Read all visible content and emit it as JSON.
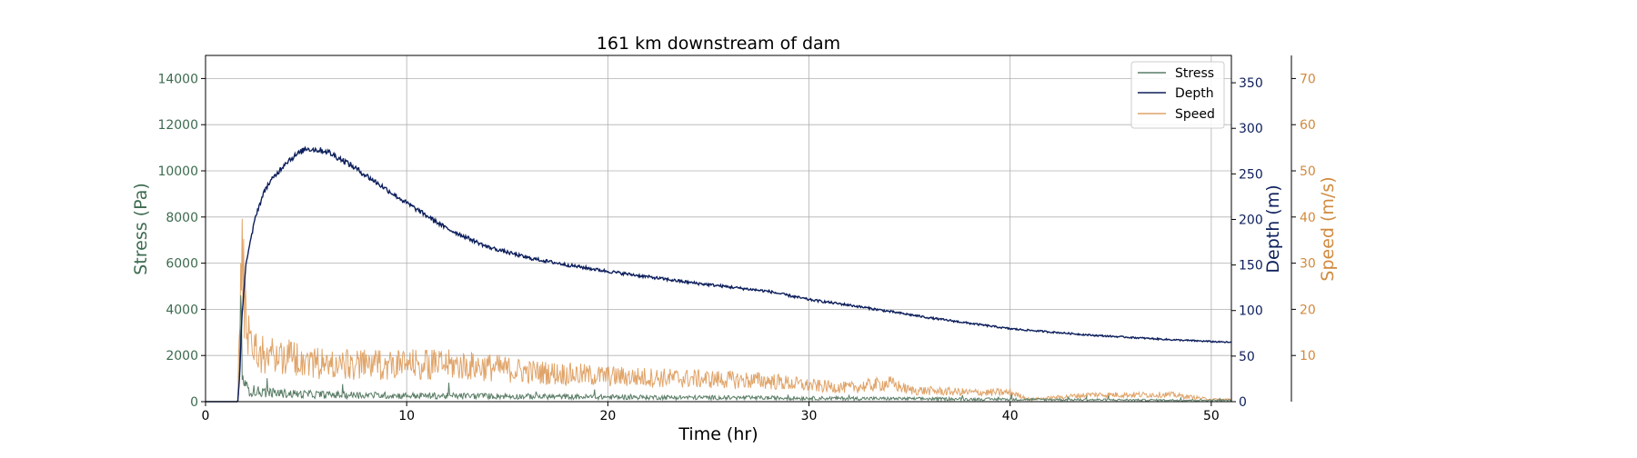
{
  "chart_data": {
    "type": "line",
    "title": "161 km downstream of dam",
    "xlabel": "Time (hr)",
    "xlim": [
      0,
      51
    ],
    "x_ticks": [
      "0",
      "10",
      "20",
      "30",
      "40",
      "50"
    ],
    "x_tick_values": [
      0,
      10,
      20,
      30,
      40,
      50
    ],
    "grid": true,
    "legend_position": "top-right",
    "axes": {
      "stress": {
        "label": "Stress (Pa)",
        "color": "#5a7d66",
        "tick_color": "#3d6b4f",
        "lim": [
          0,
          15000
        ],
        "ticks": [
          "0",
          "2000",
          "4000",
          "6000",
          "8000",
          "10000",
          "12000",
          "14000"
        ],
        "tick_values": [
          0,
          2000,
          4000,
          6000,
          8000,
          10000,
          12000,
          14000
        ]
      },
      "depth": {
        "label": "Depth (m)",
        "color": "#0d1f5c",
        "lim": [
          0,
          380
        ],
        "ticks": [
          "0",
          "50",
          "100",
          "150",
          "200",
          "250",
          "300",
          "350"
        ],
        "tick_values": [
          0,
          50,
          100,
          150,
          200,
          250,
          300,
          350
        ]
      },
      "speed": {
        "label": "Speed (m/s)",
        "color": "#e0a469",
        "tick_color": "#d18a3e",
        "lim": [
          0,
          75
        ],
        "ticks": [
          "10",
          "20",
          "30",
          "40",
          "50",
          "60",
          "70"
        ],
        "tick_values": [
          10,
          20,
          30,
          40,
          50,
          60,
          70
        ]
      }
    },
    "series": [
      {
        "name": "Stress",
        "axis": "stress",
        "color": "#5a7d66",
        "x": [
          0,
          1.6,
          1.7,
          1.75,
          1.8,
          1.9,
          2.0,
          2.2,
          2.5,
          3,
          4,
          5,
          6,
          8,
          10,
          14,
          18,
          22,
          26,
          30,
          34,
          38,
          42,
          46,
          50,
          51
        ],
        "y": [
          0,
          0,
          1500,
          3200,
          2400,
          900,
          600,
          500,
          450,
          400,
          350,
          320,
          300,
          280,
          260,
          240,
          210,
          190,
          170,
          150,
          130,
          110,
          90,
          75,
          60,
          55
        ]
      },
      {
        "name": "Depth",
        "axis": "depth",
        "color": "#0d1f5c",
        "x": [
          0,
          1.6,
          1.7,
          1.8,
          2.0,
          2.5,
          3,
          4,
          5,
          6,
          7,
          8,
          10,
          12,
          14,
          16,
          18,
          20,
          24,
          28,
          30,
          32,
          34,
          36,
          38,
          40,
          44,
          48,
          51
        ],
        "y": [
          0,
          0,
          30,
          90,
          150,
          205,
          235,
          263,
          278,
          275,
          263,
          248,
          218,
          190,
          170,
          158,
          150,
          143,
          131,
          121,
          112,
          106,
          99,
          92,
          86,
          80,
          73,
          68,
          65
        ]
      },
      {
        "name": "Speed",
        "axis": "speed",
        "color": "#e0a469",
        "x": [
          0,
          1.6,
          1.7,
          1.8,
          1.9,
          2.0,
          2.2,
          2.5,
          3,
          4,
          6,
          8,
          10,
          12,
          14,
          16,
          18,
          20,
          24,
          28,
          30,
          32,
          34,
          35,
          38,
          40,
          41,
          44,
          48,
          50,
          51
        ],
        "y": [
          0,
          0,
          20,
          30,
          25,
          18,
          15,
          11,
          10,
          10,
          8,
          8,
          8,
          8,
          7.5,
          6.5,
          6,
          5.5,
          5,
          4.5,
          3.5,
          3,
          4,
          2.5,
          2,
          2,
          0.5,
          1.5,
          1.5,
          0.5,
          0.5
        ]
      }
    ]
  }
}
